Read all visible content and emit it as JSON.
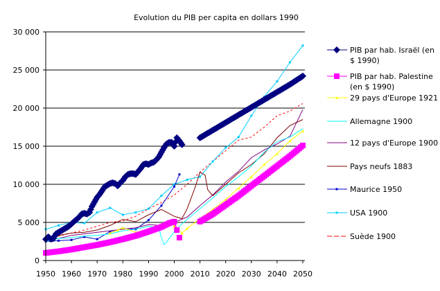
{
  "chart_data": {
    "type": "line",
    "title": "Evolution du PIB per capita en dollars 1990",
    "xlabel": "",
    "ylabel": "",
    "xlim": [
      1950,
      2050
    ],
    "ylim": [
      0,
      30000
    ],
    "x_ticks": [
      "1950",
      "1960",
      "1970",
      "1980",
      "1990",
      "2000",
      "2010",
      "2020",
      "2030",
      "2040",
      "2050"
    ],
    "y_ticks": [
      {
        "value": 0,
        "label": "0"
      },
      {
        "value": 5000,
        "label": "5 000"
      },
      {
        "value": 10000,
        "label": "10 000"
      },
      {
        "value": 15000,
        "label": "15 000"
      },
      {
        "value": 20000,
        "label": "20 000"
      },
      {
        "value": 25000,
        "label": "25 000"
      },
      {
        "value": 30000,
        "label": "30 000"
      }
    ],
    "grid": "horizontal",
    "legend_position": "right",
    "series": [
      {
        "name": "PIB par hab. Israël (en $ 1990)",
        "legend_lines": [
          "PIB par hab. Israël (en",
          "$ 1990)"
        ],
        "color": "#000080",
        "marker": "diamond",
        "segments": [
          {
            "x": [
              1950,
              1951,
              1952,
              1953,
              1954,
              1955,
              1956,
              1957,
              1958,
              1959,
              1960,
              1961,
              1962,
              1963,
              1964,
              1965,
              1966,
              1967,
              1968,
              1969,
              1970,
              1971,
              1972,
              1973,
              1974,
              1975,
              1976,
              1977,
              1978,
              1979,
              1980,
              1981,
              1982,
              1983,
              1984,
              1985,
              1986,
              1987,
              1988,
              1989,
              1990,
              1991,
              1992,
              1993,
              1994,
              1995,
              1996,
              1997,
              1998,
              1999,
              2000,
              2001,
              2002,
              2003
            ],
            "y": [
              2800,
              3100,
              2800,
              2900,
              3500,
              3700,
              3900,
              4100,
              4300,
              4500,
              4800,
              5100,
              5400,
              5700,
              6100,
              6200,
              6100,
              6300,
              7100,
              7700,
              8300,
              8700,
              9200,
              9700,
              9900,
              10100,
              10200,
              10100,
              9800,
              10200,
              10500,
              11000,
              11300,
              11400,
              11400,
              11300,
              11700,
              12100,
              12600,
              12700,
              12600,
              12800,
              12900,
              13200,
              13600,
              14200,
              14800,
              15300,
              15500,
              15500,
              15000,
              16100,
              15700,
              15200
            ]
          },
          {
            "x": [
              2010,
              2015,
              2020,
              2025,
              2030,
              2035,
              2040,
              2045,
              2050
            ],
            "y": [
              16100,
              17100,
              18100,
              19100,
              20100,
              21100,
              22100,
              23100,
              24200
            ]
          }
        ]
      },
      {
        "name": "PIB par hab. Palestine (en $ 1990)",
        "legend_lines": [
          "PIB par hab. Palestine",
          "(en $ 1990)"
        ],
        "color": "#FF00FF",
        "marker": "square",
        "segments": [
          {
            "x": [
              1950,
              1955,
              1960,
              1965,
              1970,
              1975,
              1980,
              1985,
              1990,
              1995,
              1998,
              2000,
              2001
            ],
            "y": [
              1000,
              1200,
              1450,
              1750,
              2050,
              2400,
              2800,
              3250,
              3800,
              4400,
              4900,
              5100,
              4000
            ]
          },
          {
            "x": [
              2002
            ],
            "y": [
              3000
            ]
          },
          {
            "x": [
              2010,
              2015,
              2020,
              2025,
              2030,
              2035,
              2040,
              2045,
              2050
            ],
            "y": [
              5100,
              6100,
              7300,
              8500,
              9800,
              11100,
              12400,
              13700,
              15100
            ]
          }
        ]
      },
      {
        "name": "29 pays d'Europe 1921",
        "legend_lines": [
          "29 pays d'Europe 1921"
        ],
        "color": "#FFFF00",
        "marker": "triangle",
        "segments": [
          {
            "x": [
              1975,
              1978,
              1980,
              1985,
              1990,
              1995,
              1998,
              2000,
              2003,
              2005,
              2010,
              2015,
              2020,
              2025,
              2030,
              2035,
              2040,
              2045,
              2050
            ],
            "y": [
              3600,
              4000,
              4300,
              3700,
              4100,
              4500,
              5000,
              4500,
              3600,
              4200,
              5500,
              6700,
              8000,
              9500,
              11000,
              12600,
              14000,
              15700,
              17000
            ]
          }
        ]
      },
      {
        "name": "Allemagne 1900",
        "legend_lines": [
          "Allemagne 1900"
        ],
        "color": "#00FFFF",
        "marker": "none",
        "segments": [
          {
            "x": [
              1950,
              1955,
              1960,
              1965,
              1970,
              1975,
              1980,
              1985,
              1990,
              1994,
              1995,
              1996,
              1997,
              2000,
              2003,
              2005,
              2010,
              2015,
              2020,
              2025,
              2030,
              2035,
              2040,
              2045,
              2050
            ],
            "y": [
              2500,
              2900,
              3000,
              3200,
              3300,
              3500,
              3900,
              4100,
              4500,
              4300,
              3000,
              2100,
              2400,
              3800,
              4800,
              5400,
              6800,
              8200,
              9700,
              11000,
              12400,
              14200,
              15600,
              16200,
              17300
            ]
          }
        ]
      },
      {
        "name": "12 pays d'Europe 1900",
        "legend_lines": [
          "12 pays d'Europe 1900"
        ],
        "color": "#800080",
        "marker": "none",
        "segments": [
          {
            "x": [
              1950,
              1955,
              1960,
              1965,
              1970,
              1975,
              1980,
              1985,
              1990,
              1995,
              2000,
              2005,
              2010,
              2015,
              2020,
              2025,
              2030,
              2035,
              2040,
              2045,
              2050
            ],
            "y": [
              2700,
              2900,
              3300,
              3500,
              3700,
              3900,
              4100,
              4300,
              4700,
              4600,
              5000,
              5700,
              7200,
              8600,
              10300,
              11700,
              13500,
              14500,
              15300,
              16300,
              19800
            ]
          }
        ]
      },
      {
        "name": "Pays neufs 1883",
        "legend_lines": [
          "Pays neufs 1883"
        ],
        "color": "#800000",
        "marker": "none",
        "segments": [
          {
            "x": [
              1950,
              1955,
              1960,
              1965,
              1970,
              1975,
              1980,
              1985,
              1990,
              1995,
              2000,
              2003,
              2005,
              2008,
              2010,
              2012,
              2013,
              2015,
              2020,
              2025,
              2030,
              2035,
              2040,
              2045,
              2050
            ],
            "y": [
              3000,
              3300,
              3600,
              3700,
              4000,
              4600,
              5400,
              5100,
              6000,
              6700,
              5800,
              5500,
              6800,
              9500,
              11600,
              11200,
              9300,
              8500,
              10000,
              11500,
              12600,
              14000,
              16100,
              17700,
              18500
            ]
          }
        ]
      },
      {
        "name": "Maurice 1950",
        "legend_lines": [
          "Maurice 1950"
        ],
        "color": "#0000CC",
        "marker": "dot",
        "segments": [
          {
            "x": [
              1950,
              1955,
              1960,
              1965,
              1970,
              1975,
              1980,
              1985,
              1990,
              1995,
              2000,
              2002
            ],
            "y": [
              2500,
              2600,
              2700,
              3100,
              2800,
              3800,
              4200,
              4100,
              5300,
              7200,
              9700,
              11300
            ]
          }
        ]
      },
      {
        "name": "USA 1900",
        "legend_lines": [
          "USA 1900"
        ],
        "color": "#00CCFF",
        "marker": "dot",
        "segments": [
          {
            "x": [
              1950,
              1955,
              1960,
              1965,
              1970,
              1975,
              1980,
              1985,
              1990,
              1995,
              2000,
              2005,
              2010,
              2015,
              2020,
              2025,
              2030,
              2035,
              2040,
              2045,
              2050
            ],
            "y": [
              4100,
              4600,
              5000,
              4900,
              6300,
              6900,
              6000,
              6300,
              6800,
              8500,
              10000,
              10600,
              11000,
              13000,
              14800,
              16200,
              19000,
              21500,
              23500,
              26000,
              28200
            ]
          }
        ]
      },
      {
        "name": "Suède 1900",
        "legend_lines": [
          "Suède 1900"
        ],
        "color": "#FF0000",
        "marker": "none",
        "dashed": true,
        "segments": [
          {
            "x": [
              1950,
              1955,
              1960,
              1965,
              1970,
              1975,
              1980,
              1985,
              1990,
              1995,
              2000,
              2005,
              2010,
              2015,
              2020,
              2025,
              2030,
              2035,
              2040,
              2045,
              2050
            ],
            "y": [
              2900,
              3200,
              3600,
              4000,
              4500,
              5000,
              5200,
              5800,
              6800,
              7600,
              8600,
              10000,
              11600,
              13000,
              14400,
              15800,
              16200,
              17500,
              19000,
              19600,
              20600
            ]
          }
        ]
      }
    ]
  }
}
